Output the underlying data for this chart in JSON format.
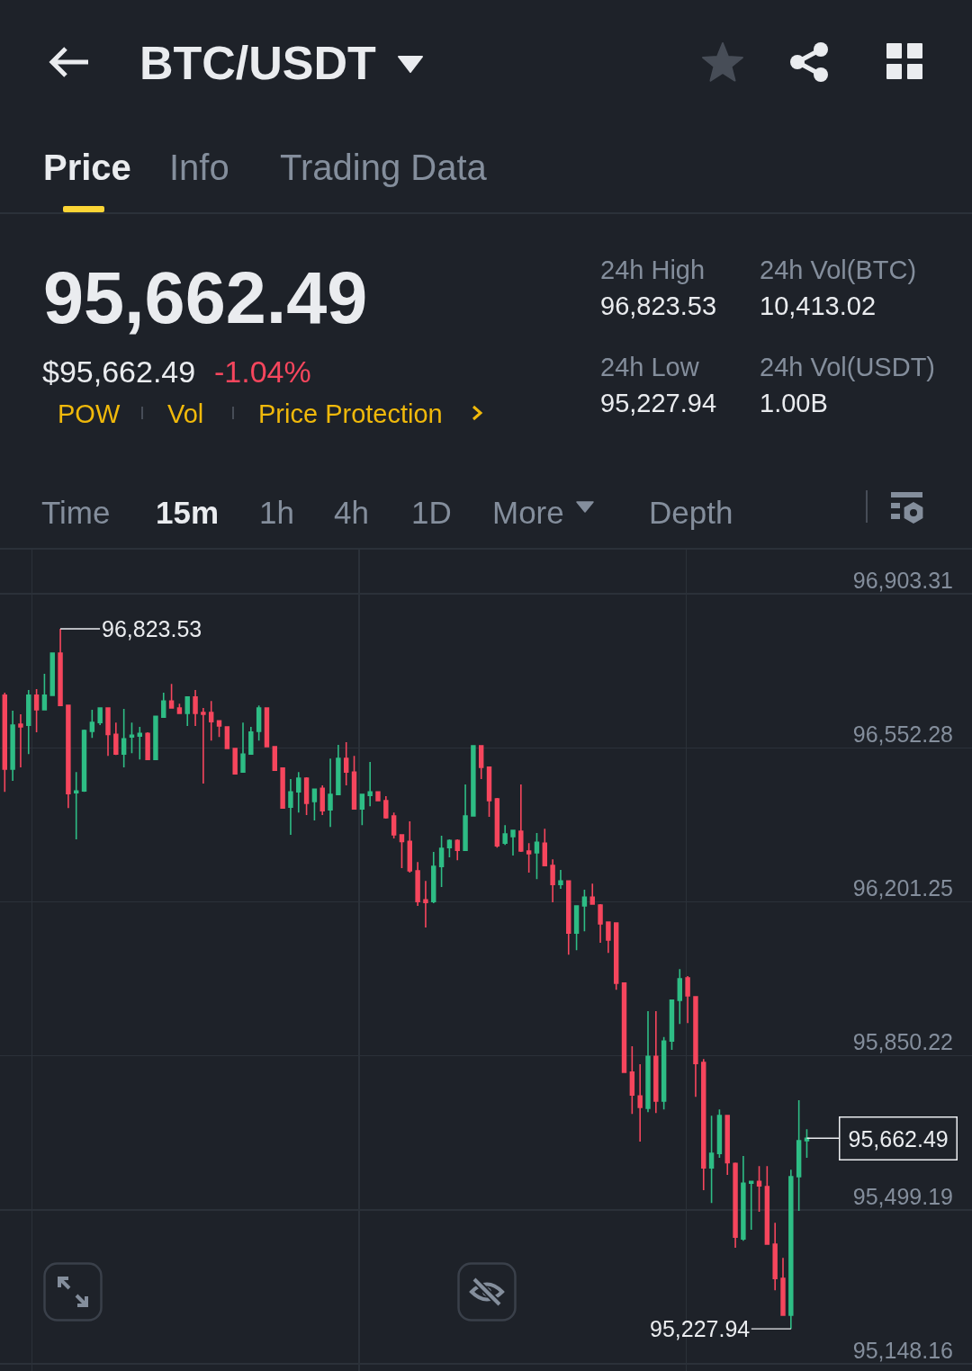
{
  "chart_data": {
    "type": "candlestick",
    "title": "BTC/USDT",
    "categories": [
      null,
      null,
      null,
      null,
      null,
      null,
      null,
      null,
      null,
      null,
      null,
      null,
      null,
      null,
      null,
      null,
      null,
      null,
      null,
      null,
      null,
      null,
      null,
      null,
      null,
      null,
      null,
      null,
      null,
      null,
      null,
      null,
      null,
      null,
      null,
      null,
      null,
      null,
      null,
      null,
      null,
      null,
      null,
      null,
      null,
      null,
      null,
      null,
      null,
      null,
      null,
      null,
      null,
      null,
      null,
      null,
      null,
      null,
      null,
      null,
      null,
      null,
      null,
      null,
      null,
      null,
      null,
      null,
      null,
      null,
      null,
      null,
      null,
      null,
      null,
      null,
      null,
      null,
      null,
      null,
      null,
      null,
      null,
      null,
      null,
      null,
      null,
      null,
      null,
      null,
      null,
      null,
      null,
      null,
      null,
      null,
      null,
      null,
      null,
      null,
      null,
      null
    ],
    "ohlc": [
      [
        96672,
        96678,
        96452,
        96504
      ],
      [
        96504,
        96637,
        96477,
        96604
      ],
      [
        96606,
        96629,
        96508,
        96600
      ],
      [
        96604,
        96684,
        96538,
        96672
      ],
      [
        96672,
        96686,
        96588,
        96639
      ],
      [
        96639,
        96721,
        96639,
        96672
      ],
      [
        96672,
        96768,
        96672,
        96768
      ],
      [
        96768,
        96823.53,
        96649,
        96649
      ],
      [
        96649,
        96649,
        96415,
        96448
      ],
      [
        96450,
        96497,
        96344,
        96454
      ],
      [
        96454,
        96594,
        96452,
        96592
      ],
      [
        96590,
        96639,
        96575,
        96610
      ],
      [
        96610,
        96643,
        96604,
        96643
      ],
      [
        96643,
        96643,
        96534,
        96583
      ],
      [
        96583,
        96610,
        96536,
        96538
      ],
      [
        96538,
        96641,
        96508,
        96573
      ],
      [
        96577,
        96610,
        96540,
        96581
      ],
      [
        96579,
        96600,
        96526,
        96585
      ],
      [
        96585,
        96588,
        96526,
        96526
      ],
      [
        96526,
        96624,
        96526,
        96624
      ],
      [
        96622,
        96678,
        96622,
        96659
      ],
      [
        96659,
        96698,
        96643,
        96643
      ],
      [
        96643,
        96653,
        96631,
        96631
      ],
      [
        96631,
        96668,
        96602,
        96668
      ],
      [
        96668,
        96684,
        96602,
        96631
      ],
      [
        96633,
        96643,
        96471,
        96629
      ],
      [
        96633,
        96659,
        96569,
        96612
      ],
      [
        96614,
        96614,
        96577,
        96602
      ],
      [
        96600,
        96600,
        96551,
        96551
      ],
      [
        96551,
        96551,
        96493,
        96493
      ],
      [
        96497,
        96610,
        96497,
        96538
      ],
      [
        96538,
        96600,
        96538,
        96588
      ],
      [
        96590,
        96649,
        96569,
        96643
      ],
      [
        96643,
        96643,
        96555,
        96555
      ],
      [
        96555,
        96555,
        96501,
        96501
      ],
      [
        96506,
        96506,
        96415,
        96415
      ],
      [
        96417,
        96481,
        96354,
        96452
      ],
      [
        96452,
        96497,
        96405,
        96483
      ],
      [
        96483,
        96485,
        96399,
        96426
      ],
      [
        96430,
        96458,
        96387,
        96458
      ],
      [
        96460,
        96467,
        96399,
        96409
      ],
      [
        96411,
        96528,
        96372,
        96446
      ],
      [
        96446,
        96559,
        96446,
        96528
      ],
      [
        96528,
        96565,
        96467,
        96497
      ],
      [
        96497,
        96534,
        96413,
        96413
      ],
      [
        96413,
        96446,
        96376,
        96446
      ],
      [
        96444,
        96520,
        96419,
        96452
      ],
      [
        96452,
        96452,
        96432,
        96432
      ],
      [
        96432,
        96442,
        96391,
        96393
      ],
      [
        96397,
        96405,
        96346,
        96354
      ],
      [
        96354,
        96354,
        96278,
        96339
      ],
      [
        96339,
        96385,
        96268,
        96272
      ],
      [
        96272,
        96292,
        96192,
        96202
      ],
      [
        96206,
        96249,
        96143,
        96200
      ],
      [
        96202,
        96315,
        96198,
        96282
      ],
      [
        96282,
        96352,
        96235,
        96323
      ],
      [
        96325,
        96344,
        96303,
        96341
      ],
      [
        96341,
        96344,
        96296,
        96319
      ],
      [
        96319,
        96469,
        96319,
        96397
      ],
      [
        96397,
        96557,
        96397,
        96557
      ],
      [
        96557,
        96557,
        96481,
        96508
      ],
      [
        96508,
        96508,
        96395,
        96432
      ],
      [
        96436,
        96438,
        96325,
        96329
      ],
      [
        96335,
        96376,
        96331,
        96356
      ],
      [
        96350,
        96364,
        96307,
        96364
      ],
      [
        96362,
        96469,
        96315,
        96317
      ],
      [
        96317,
        96335,
        96268,
        96311
      ],
      [
        96313,
        96358,
        96253,
        96337
      ],
      [
        96335,
        96368,
        96284,
        96284
      ],
      [
        96284,
        96298,
        96200,
        96241
      ],
      [
        96241,
        96274,
        96231,
        96249
      ],
      [
        96249,
        96249,
        96081,
        96130
      ],
      [
        96130,
        96192,
        96091,
        96192
      ],
      [
        96192,
        96229,
        96134,
        96212
      ],
      [
        96212,
        96243,
        96196,
        96196
      ],
      [
        96194,
        96196,
        96108,
        96151
      ],
      [
        96155,
        96155,
        96085,
        96114
      ],
      [
        96153,
        96153,
        96001,
        96016
      ],
      [
        96016,
        96016,
        95813,
        95813
      ],
      [
        95813,
        95872,
        95718,
        95761
      ],
      [
        95759,
        95831,
        95655,
        95733
      ],
      [
        95731,
        95952,
        95722,
        95849
      ],
      [
        95849,
        95952,
        95720,
        95747
      ],
      [
        95747,
        95893,
        95728,
        95884
      ],
      [
        95884,
        95977,
        95864,
        95977
      ],
      [
        95977,
        96048,
        95923,
        96026
      ],
      [
        96028,
        96032,
        95925,
        95987
      ],
      [
        95985,
        95985,
        95757,
        95833
      ],
      [
        95835,
        95843,
        95544,
        95595
      ],
      [
        95595,
        95714,
        95515,
        95628
      ],
      [
        95628,
        95728,
        95618,
        95714
      ],
      [
        95714,
        95714,
        95579,
        95607
      ],
      [
        95605,
        95607,
        95413,
        95437
      ],
      [
        95433,
        95622,
        95429,
        95560
      ],
      [
        95560,
        95564,
        95454,
        95564
      ],
      [
        95564,
        95599,
        95495,
        95554
      ],
      [
        95552,
        95599,
        95421,
        95421
      ],
      [
        95421,
        95470,
        95316,
        95343
      ],
      [
        95343,
        95390,
        95259,
        95259
      ],
      [
        95259,
        95591,
        95227.94,
        95575
      ],
      [
        95575,
        95749,
        95497,
        95657
      ],
      [
        95657,
        95683,
        95618,
        95662.49
      ]
    ],
    "colors": [
      "#f6465d",
      "#2ebd85",
      "#f6465d",
      "#2ebd85",
      "#f6465d",
      "#2ebd85",
      "#2ebd85",
      "#f6465d",
      "#f6465d",
      "#2ebd85",
      "#2ebd85",
      "#2ebd85",
      "#2ebd85",
      "#f6465d",
      "#f6465d",
      "#2ebd85",
      "#2ebd85",
      "#2ebd85",
      "#f6465d",
      "#2ebd85",
      "#2ebd85",
      "#f6465d",
      "#f6465d",
      "#2ebd85",
      "#f6465d",
      "#f6465d",
      "#f6465d",
      "#f6465d",
      "#f6465d",
      "#f6465d",
      "#2ebd85",
      "#2ebd85",
      "#2ebd85",
      "#f6465d",
      "#f6465d",
      "#f6465d",
      "#2ebd85",
      "#2ebd85",
      "#f6465d",
      "#2ebd85",
      "#f6465d",
      "#2ebd85",
      "#2ebd85",
      "#f6465d",
      "#f6465d",
      "#2ebd85",
      "#2ebd85",
      "#f6465d",
      "#f6465d",
      "#f6465d",
      "#f6465d",
      "#f6465d",
      "#f6465d",
      "#f6465d",
      "#2ebd85",
      "#2ebd85",
      "#2ebd85",
      "#f6465d",
      "#2ebd85",
      "#2ebd85",
      "#f6465d",
      "#f6465d",
      "#f6465d",
      "#2ebd85",
      "#2ebd85",
      "#f6465d",
      "#f6465d",
      "#2ebd85",
      "#f6465d",
      "#f6465d",
      "#2ebd85",
      "#f6465d",
      "#2ebd85",
      "#2ebd85",
      "#f6465d",
      "#f6465d",
      "#f6465d",
      "#f6465d",
      "#f6465d",
      "#f6465d",
      "#f6465d",
      "#2ebd85",
      "#f6465d",
      "#2ebd85",
      "#2ebd85",
      "#2ebd85",
      "#f6465d",
      "#f6465d",
      "#f6465d",
      "#2ebd85",
      "#2ebd85",
      "#f6465d",
      "#f6465d",
      "#2ebd85",
      "#2ebd85",
      "#f6465d",
      "#f6465d",
      "#f6465d",
      "#f6465d",
      "#2ebd85",
      "#2ebd85",
      "#2ebd85"
    ],
    "ylim": [
      95132,
      97004
    ],
    "yticks": [
      {
        "value": 95148.16,
        "label": "95,148.16"
      },
      {
        "value": 95499.19,
        "label": "95,499.19"
      },
      {
        "value": 95850.22,
        "label": "95,850.22"
      },
      {
        "value": 96201.25,
        "label": "96,201.25"
      },
      {
        "value": 96552.28,
        "label": "96,552.28"
      },
      {
        "value": 96903.31,
        "label": "96,903.31"
      }
    ],
    "grid": true,
    "tick_labels": "y",
    "annotations": [
      "Price",
      "Info",
      "Trading Data",
      "95,662.49",
      "24h High",
      "24h Vol(BTC)",
      "96,823.53",
      "10,413.02",
      "$95,662.49",
      "-1.04%",
      "24h Low",
      "24h Vol(USDT)",
      "95,227.94",
      "1.00B",
      "POW",
      "Vol",
      "Price Protection",
      "Time",
      "15m",
      "1h",
      "4h",
      "1D",
      "More",
      "Depth",
      "96,823.53",
      "95,227.94",
      "95,662.49"
    ]
  }
}
